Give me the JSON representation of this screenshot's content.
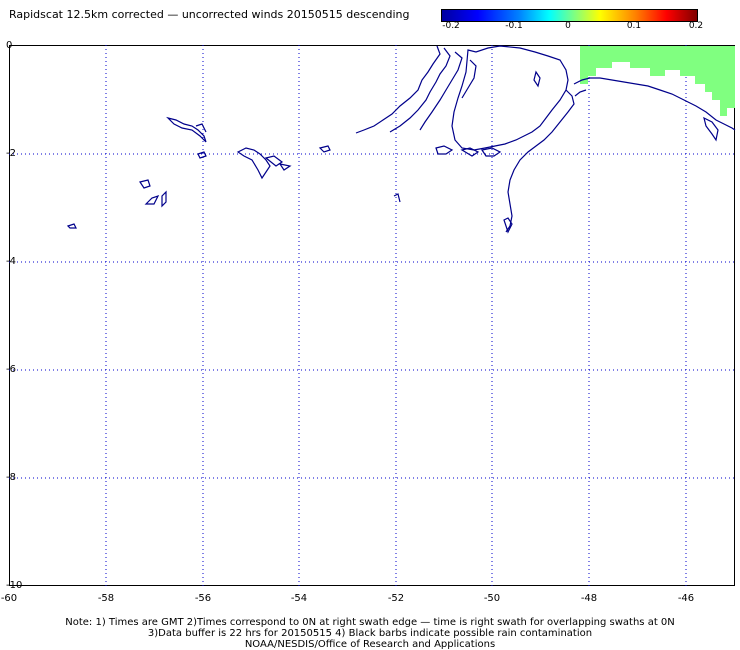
{
  "title": "Rapidscat 12.5km corrected — uncorrected winds 20150515 descending",
  "colorbar": {
    "ticks": [
      "-0.2",
      "-0.1",
      "0",
      "0.1",
      "0.2"
    ],
    "colors": [
      "#0000a0",
      "#0000ff",
      "#00ffff",
      "#80ff80",
      "#ffff00",
      "#ff0000",
      "#800000"
    ]
  },
  "axes": {
    "x_ticks": [
      "-60",
      "-58",
      "-56",
      "-54",
      "-52",
      "-50",
      "-48",
      "-46"
    ],
    "y_ticks": [
      "0",
      "-2",
      "-4",
      "-6",
      "-8",
      "-10"
    ],
    "grid": "dotted"
  },
  "map": {
    "region": "Northern Brazil coast / Amazon delta",
    "coastline_color": "#00008b",
    "swath_fill_color": "#80ff80"
  },
  "notes": [
    "Note: 1) Times are GMT 2)Times correspond to 0N at right swath edge — time is right swath for overlapping swaths at 0N",
    "3)Data buffer is 22 hrs for 20150515 4) Black barbs indicate possible rain contamination",
    "NOAA/NESDIS/Office of Research and Applications"
  ]
}
